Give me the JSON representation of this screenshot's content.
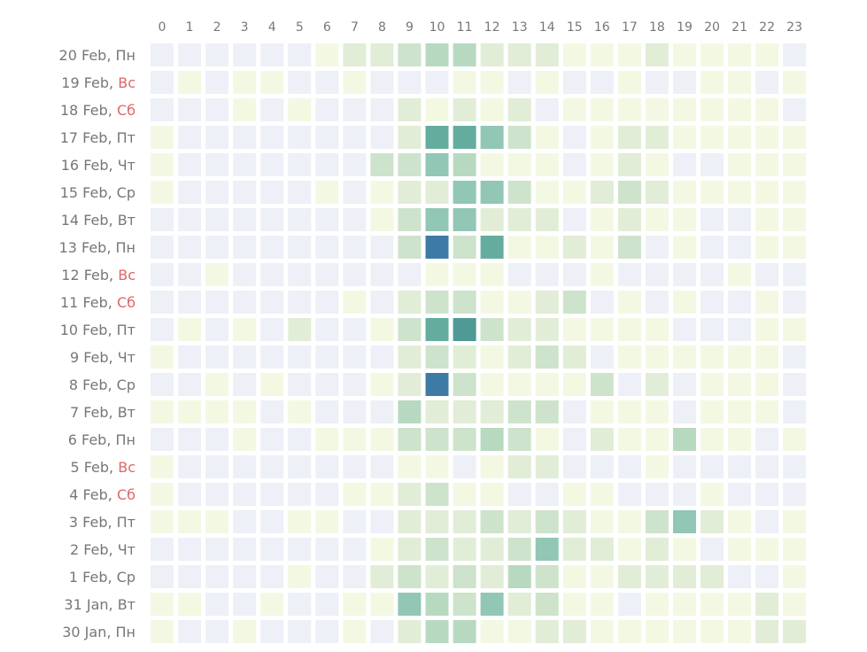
{
  "chart_data": {
    "type": "heatmap",
    "x": [
      "0",
      "1",
      "2",
      "3",
      "4",
      "5",
      "6",
      "7",
      "8",
      "9",
      "10",
      "11",
      "12",
      "13",
      "14",
      "15",
      "16",
      "17",
      "18",
      "19",
      "20",
      "21",
      "22",
      "23"
    ],
    "y": [
      {
        "date": "20 Feb",
        "weekday": "Пн",
        "weekend": false
      },
      {
        "date": "19 Feb",
        "weekday": "Вс",
        "weekend": true
      },
      {
        "date": "18 Feb",
        "weekday": "Сб",
        "weekend": true
      },
      {
        "date": "17 Feb",
        "weekday": "Пт",
        "weekend": false
      },
      {
        "date": "16 Feb",
        "weekday": "Чт",
        "weekend": false
      },
      {
        "date": "15 Feb",
        "weekday": "Ср",
        "weekend": false
      },
      {
        "date": "14 Feb",
        "weekday": "Вт",
        "weekend": false
      },
      {
        "date": "13 Feb",
        "weekday": "Пн",
        "weekend": false
      },
      {
        "date": "12 Feb",
        "weekday": "Вс",
        "weekend": true
      },
      {
        "date": "11 Feb",
        "weekday": "Сб",
        "weekend": true
      },
      {
        "date": "10 Feb",
        "weekday": "Пт",
        "weekend": false
      },
      {
        "date": "9 Feb",
        "weekday": "Чт",
        "weekend": false
      },
      {
        "date": "8 Feb",
        "weekday": "Ср",
        "weekend": false
      },
      {
        "date": "7 Feb",
        "weekday": "Вт",
        "weekend": false
      },
      {
        "date": "6 Feb",
        "weekday": "Пн",
        "weekend": false
      },
      {
        "date": "5 Feb",
        "weekday": "Вс",
        "weekend": true
      },
      {
        "date": "4 Feb",
        "weekday": "Сб",
        "weekend": true
      },
      {
        "date": "3 Feb",
        "weekday": "Пт",
        "weekend": false
      },
      {
        "date": "2 Feb",
        "weekday": "Чт",
        "weekend": false
      },
      {
        "date": "1 Feb",
        "weekday": "Ср",
        "weekend": false
      },
      {
        "date": "31 Jan",
        "weekday": "Вт",
        "weekend": false
      },
      {
        "date": "30 Jan",
        "weekday": "Пн",
        "weekend": false
      }
    ],
    "values": [
      [
        0,
        0,
        0,
        0,
        0,
        0,
        1,
        2,
        2,
        3,
        4,
        4,
        2,
        2,
        2,
        1,
        1,
        1,
        2,
        1,
        1,
        1,
        1,
        0
      ],
      [
        0,
        1,
        0,
        1,
        1,
        0,
        0,
        1,
        0,
        0,
        0,
        1,
        1,
        0,
        1,
        0,
        0,
        1,
        0,
        0,
        1,
        1,
        0,
        1
      ],
      [
        0,
        0,
        0,
        1,
        0,
        1,
        0,
        0,
        0,
        2,
        1,
        2,
        1,
        2,
        0,
        1,
        1,
        1,
        1,
        1,
        1,
        1,
        1,
        0
      ],
      [
        1,
        0,
        0,
        0,
        0,
        0,
        0,
        0,
        0,
        2,
        6,
        6,
        5,
        3,
        1,
        0,
        1,
        2,
        2,
        1,
        1,
        1,
        1,
        1
      ],
      [
        1,
        0,
        0,
        0,
        0,
        0,
        0,
        0,
        3,
        3,
        5,
        4,
        1,
        1,
        1,
        0,
        1,
        2,
        1,
        0,
        0,
        1,
        1,
        1
      ],
      [
        1,
        0,
        0,
        0,
        0,
        0,
        1,
        0,
        1,
        2,
        2,
        5,
        5,
        3,
        1,
        1,
        2,
        3,
        2,
        1,
        1,
        1,
        1,
        1
      ],
      [
        0,
        0,
        0,
        0,
        0,
        0,
        0,
        0,
        1,
        3,
        5,
        5,
        2,
        2,
        2,
        0,
        1,
        2,
        1,
        1,
        0,
        0,
        1,
        1
      ],
      [
        0,
        0,
        0,
        0,
        0,
        0,
        0,
        0,
        0,
        3,
        8,
        3,
        6,
        1,
        1,
        2,
        1,
        3,
        0,
        1,
        0,
        0,
        1,
        1
      ],
      [
        0,
        0,
        1,
        0,
        0,
        0,
        0,
        0,
        0,
        0,
        1,
        1,
        1,
        0,
        0,
        0,
        1,
        0,
        0,
        0,
        0,
        1,
        0,
        0
      ],
      [
        0,
        0,
        0,
        0,
        0,
        0,
        0,
        1,
        0,
        2,
        3,
        3,
        1,
        1,
        2,
        3,
        0,
        1,
        0,
        1,
        0,
        0,
        1,
        0
      ],
      [
        0,
        1,
        0,
        1,
        0,
        2,
        0,
        0,
        1,
        3,
        6,
        7,
        3,
        2,
        2,
        1,
        1,
        1,
        1,
        0,
        0,
        0,
        1,
        1
      ],
      [
        1,
        0,
        0,
        0,
        0,
        0,
        0,
        0,
        0,
        2,
        3,
        2,
        1,
        2,
        3,
        2,
        0,
        1,
        1,
        1,
        1,
        1,
        1,
        0
      ],
      [
        0,
        0,
        1,
        0,
        1,
        0,
        0,
        0,
        1,
        2,
        8,
        3,
        1,
        1,
        1,
        1,
        3,
        0,
        2,
        0,
        1,
        1,
        1,
        0
      ],
      [
        1,
        1,
        1,
        1,
        0,
        1,
        0,
        0,
        0,
        4,
        2,
        2,
        2,
        3,
        3,
        0,
        1,
        1,
        1,
        0,
        1,
        1,
        1,
        0
      ],
      [
        0,
        0,
        0,
        1,
        0,
        0,
        1,
        1,
        1,
        3,
        3,
        3,
        4,
        3,
        1,
        0,
        2,
        1,
        1,
        4,
        1,
        1,
        0,
        1
      ],
      [
        1,
        0,
        0,
        0,
        0,
        0,
        0,
        0,
        0,
        1,
        1,
        0,
        1,
        2,
        2,
        0,
        0,
        0,
        1,
        0,
        0,
        0,
        0,
        0
      ],
      [
        1,
        0,
        0,
        0,
        0,
        0,
        0,
        1,
        1,
        2,
        3,
        1,
        1,
        0,
        0,
        1,
        1,
        0,
        0,
        0,
        1,
        0,
        0,
        0
      ],
      [
        1,
        1,
        1,
        0,
        0,
        1,
        1,
        0,
        0,
        2,
        2,
        2,
        3,
        2,
        3,
        2,
        1,
        1,
        3,
        5,
        2,
        1,
        0,
        1
      ],
      [
        0,
        0,
        0,
        0,
        0,
        0,
        0,
        0,
        1,
        2,
        3,
        2,
        2,
        3,
        5,
        2,
        2,
        1,
        2,
        1,
        0,
        1,
        1,
        1
      ],
      [
        0,
        0,
        0,
        0,
        0,
        1,
        0,
        0,
        2,
        3,
        2,
        3,
        2,
        4,
        3,
        1,
        1,
        2,
        2,
        2,
        2,
        0,
        0,
        1
      ],
      [
        1,
        1,
        0,
        0,
        1,
        0,
        0,
        1,
        1,
        5,
        4,
        3,
        5,
        2,
        3,
        1,
        1,
        0,
        1,
        1,
        1,
        1,
        2,
        1
      ],
      [
        1,
        0,
        0,
        1,
        0,
        0,
        0,
        1,
        0,
        2,
        4,
        4,
        1,
        1,
        2,
        2,
        1,
        1,
        1,
        1,
        1,
        1,
        2,
        2
      ]
    ],
    "color_scale": [
      "#edf0f7",
      "#f3f8e3",
      "#e1edd6",
      "#cde3cb",
      "#b7d9c0",
      "#92c6b5",
      "#64ad9e",
      "#4f9a95",
      "#3d7aa5",
      "#33579c"
    ],
    "weekend_color": "#e06666",
    "label_color": "#777777",
    "grid": false,
    "legend": "none"
  }
}
